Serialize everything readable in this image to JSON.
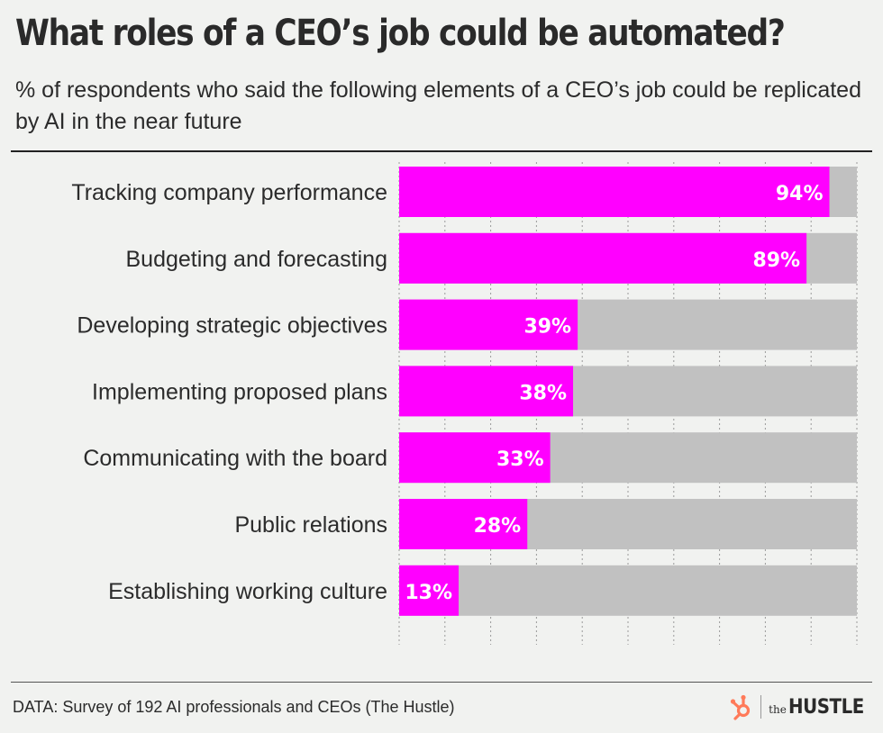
{
  "title": "What roles of a CEO’s job could be automated?",
  "subtitle": "% of respondents who said the following elements of a CEO’s job could be replicated by AI in the near future",
  "source": "DATA: Survey of 192 AI professionals and CEOs (The Hustle)",
  "brand": {
    "the": "the",
    "name": "HUSTLE",
    "logo_icon": "hubspot-sprocket-icon"
  },
  "colors": {
    "bar": "#ff00ff",
    "track": "#c1c1c1",
    "background": "#f1f2f0",
    "logo": "#ff7a59"
  },
  "chart_data": {
    "type": "bar",
    "orientation": "horizontal",
    "categories": [
      "Tracking company performance",
      "Budgeting and forecasting",
      "Developing strategic objectives",
      "Implementing proposed plans",
      "Communicating with the board",
      "Public relations",
      "Establishing working culture"
    ],
    "values": [
      94,
      89,
      39,
      38,
      33,
      28,
      13
    ],
    "value_labels": [
      "94%",
      "89%",
      "39%",
      "38%",
      "33%",
      "28%",
      "13%"
    ],
    "xlim": [
      0,
      100
    ],
    "unit": "%",
    "grid": true
  }
}
